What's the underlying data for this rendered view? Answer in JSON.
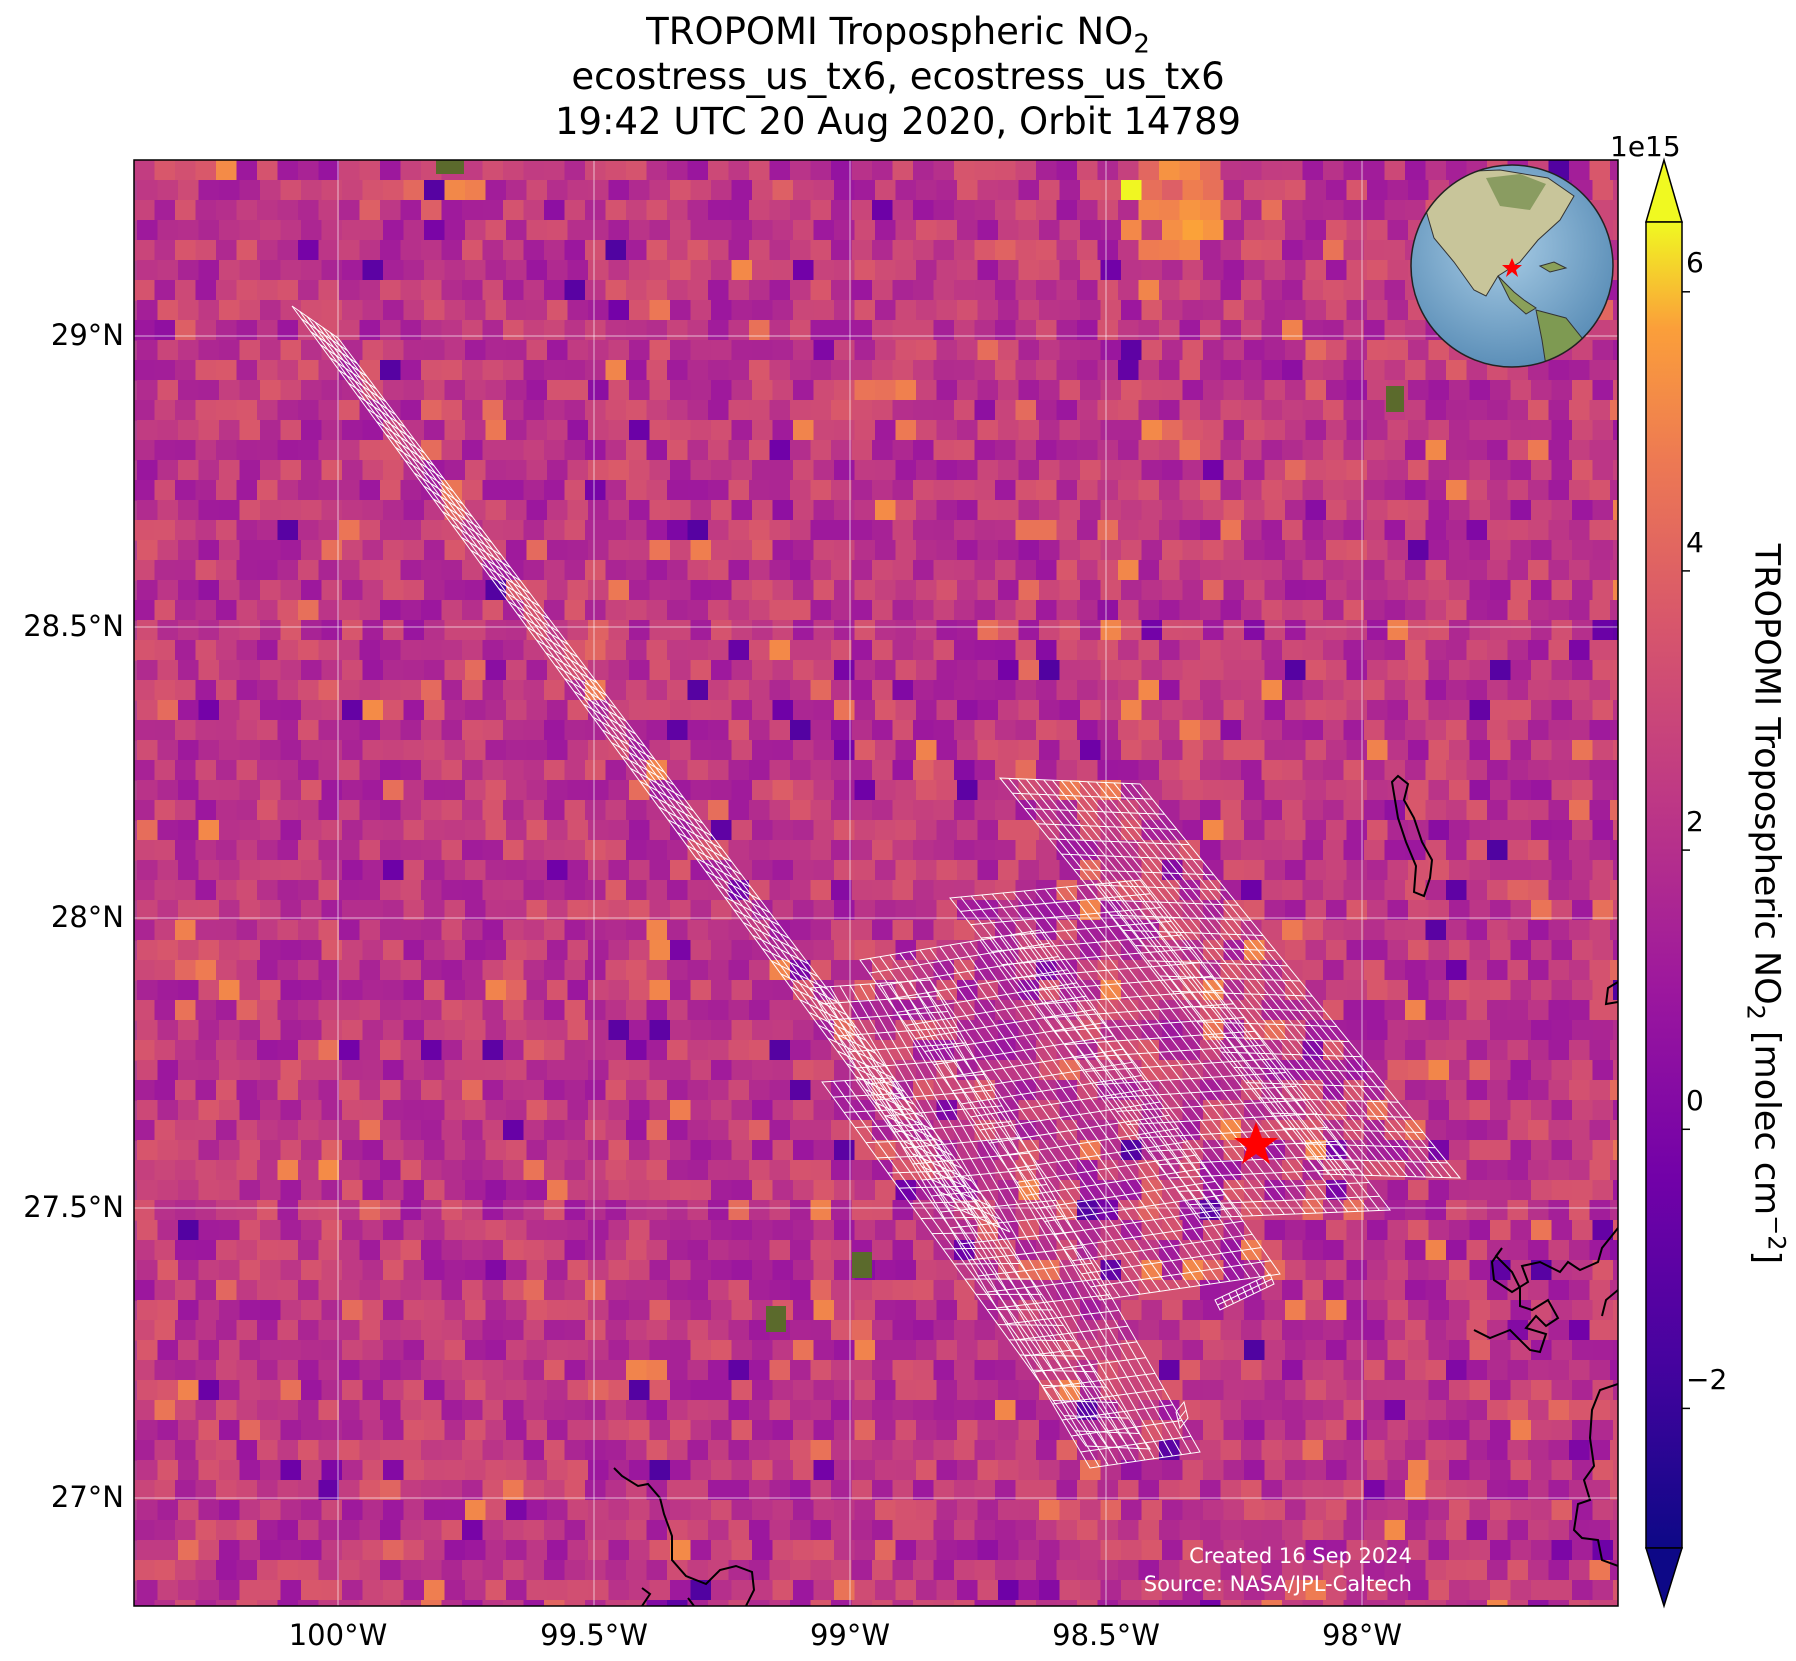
{
  "title": {
    "line1_prefix": "TROPOMI Tropospheric NO",
    "line1_sub": "2",
    "line2": "ecostress_us_tx6, ecostress_us_tx6",
    "line3": "19:42 UTC 20 Aug 2020, Orbit 14789"
  },
  "map": {
    "lat_ticks": [
      "29°N",
      "28.5°N",
      "28°N",
      "27.5°N",
      "27°N"
    ],
    "lon_ticks": [
      "100°W",
      "99.5°W",
      "99°W",
      "98.5°W",
      "98°W"
    ],
    "lat_values": [
      29.0,
      28.5,
      28.0,
      27.5,
      27.0
    ],
    "lon_values": [
      -100.0,
      -99.5,
      -99.0,
      -98.5,
      -98.0
    ],
    "extent": {
      "lon": [
        -100.4,
        -97.5
      ],
      "lat": [
        26.8,
        29.3
      ]
    },
    "site_marker": {
      "lon": -98.2,
      "lat": 27.66,
      "color": "#ff0000",
      "icon": "star-icon"
    },
    "colormap": "plasma",
    "grid": true
  },
  "colorbar": {
    "exponent": "1e15",
    "ticks": [
      "6",
      "4",
      "2",
      "0",
      "−2"
    ],
    "tick_values": [
      6,
      4,
      2,
      0,
      -2
    ],
    "range": [
      -3,
      6.5
    ],
    "extend": "both",
    "label_prefix": "TROPOMI Tropospheric NO",
    "label_sub": "2",
    "label_mid": " [molec cm",
    "label_sup": "−2",
    "label_suffix": "]"
  },
  "inset": {
    "icon": "globe-icon",
    "marker_color": "#ff0000"
  },
  "credit": {
    "line1": "Created 16 Sep 2024",
    "line2": "Source: NASA/JPL-Caltech"
  }
}
